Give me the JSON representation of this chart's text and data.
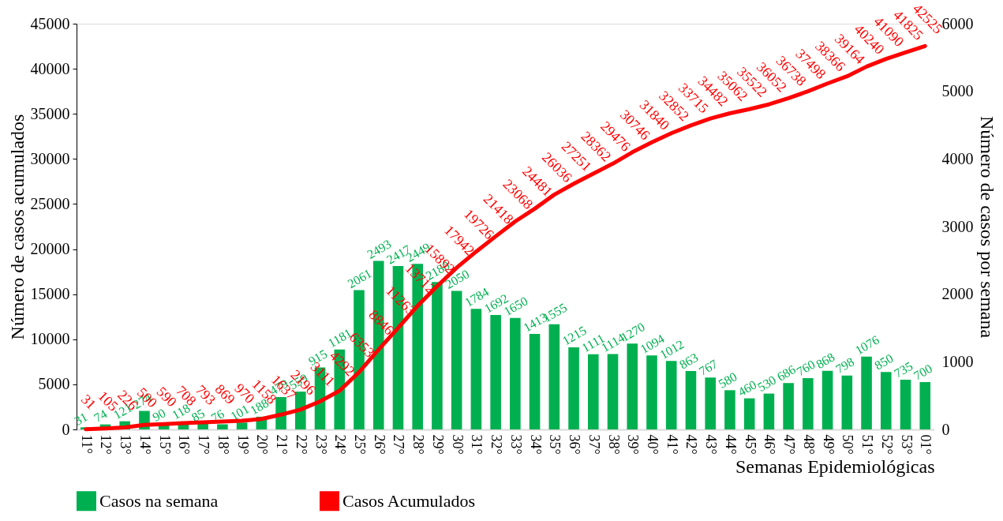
{
  "chart_data": {
    "type": "bar",
    "xlabel": "Semanas Epidemiológicas",
    "ylabel": "Número de casos acumulados",
    "y2label": "Número de  casos por semana",
    "categories": [
      "11°",
      "12°",
      "13°",
      "14°",
      "15°",
      "16°",
      "17°",
      "18°",
      "19°",
      "20°",
      "21°",
      "22°",
      "23°",
      "24°",
      "25°",
      "26°",
      "27°",
      "28°",
      "29°",
      "30°",
      "31°",
      "32°",
      "33°",
      "34°",
      "35°",
      "36°",
      "37°",
      "38°",
      "39°",
      "40°",
      "41°",
      "42°",
      "43°",
      "44°",
      "45°",
      "46°",
      "47°",
      "48°",
      "49°",
      "50°",
      "51°",
      "52°",
      "53°",
      "01°"
    ],
    "series": [
      {
        "name": "Casos na semana",
        "axis": "y2",
        "color": "#00b050",
        "values": [
          31,
          74,
          121,
          274,
          90,
          118,
          85,
          76,
          101,
          188,
          479,
          559,
          915,
          1181,
          2061,
          2493,
          2417,
          2449,
          2180,
          2050,
          1784,
          1692,
          1650,
          1413,
          1555,
          1215,
          1111,
          1114,
          1270,
          1094,
          1012,
          863,
          767,
          580,
          460,
          530,
          686,
          760,
          868,
          798,
          1076,
          850,
          735,
          700
        ]
      },
      {
        "name": "Casos Acumulados",
        "type": "line",
        "color": "#ff0000",
        "values": [
          31,
          105,
          226,
          500,
          590,
          708,
          793,
          869,
          970,
          1158,
          1637,
          2196,
          3111,
          4292,
          6353,
          8846,
          11263,
          13712,
          15892,
          17942,
          19726,
          21418,
          23068,
          24481,
          26036,
          27251,
          28362,
          29476,
          30746,
          31840,
          32852,
          33715,
          34482,
          35062,
          35522,
          36052,
          36738,
          37498,
          38366,
          39164,
          40240,
          41090,
          41825,
          42525
        ]
      }
    ],
    "ylim": [
      0,
      45000
    ],
    "yticks": [
      0,
      5000,
      10000,
      15000,
      20000,
      25000,
      30000,
      35000,
      40000,
      45000
    ],
    "y2lim": [
      0,
      6000
    ],
    "y2ticks": [
      0,
      1000,
      2000,
      3000,
      4000,
      5000,
      6000
    ],
    "data_labels": true,
    "legend": "bottom"
  }
}
